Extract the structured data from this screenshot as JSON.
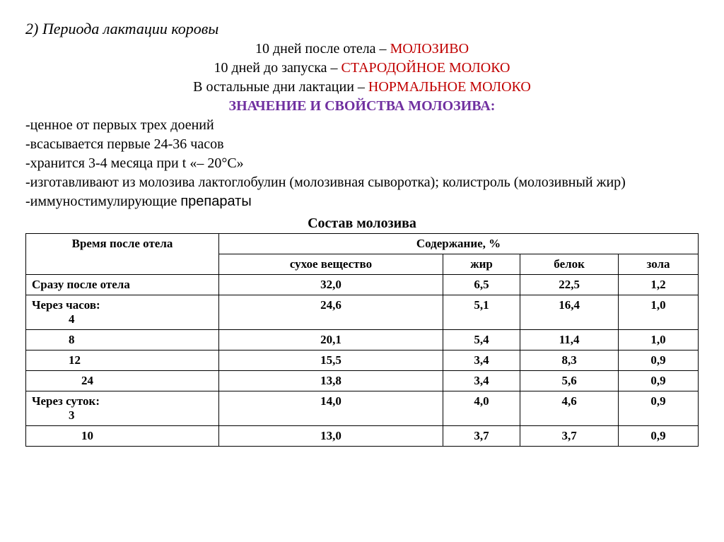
{
  "heading": "2) Периода лактации коровы",
  "lines": {
    "l1a": "10 дней после отела – ",
    "l1b": "МОЛОЗИВО",
    "l2a": "10 дней до запуска – ",
    "l2b": "СТАРОДОЙНОЕ МОЛОКО",
    "l3a": "В остальные дни лактации – ",
    "l3b": "НОРМАЛЬНОЕ МОЛОКО"
  },
  "purple_title": "ЗНАЧЕНИЕ И СВОЙСТВА МОЛОЗИВА:",
  "bullets": {
    "b1": "-ценное от первых трех доений",
    "b2": "-всасывается первые 24-36 часов",
    "b3": "-хранится 3-4 месяца при t «– 20°С»",
    "b4": "-изготавливают из молозива лактоглобулин (молозивная сыворотка); колистроль (молозивный жир)",
    "b5a": "-иммуностимулирующие ",
    "b5b": "препараты"
  },
  "table": {
    "title": "Состав молозива",
    "header": {
      "time": "Время после отела",
      "content": "Содержание, %",
      "sub": {
        "c1": "сухое вещество",
        "c2": "жир",
        "c3": "белок",
        "c4": "зола"
      }
    },
    "rows": [
      {
        "label": "Сразу после отела",
        "v": [
          "32,0",
          "6,5",
          "22,5",
          "1,2"
        ]
      },
      {
        "label": "Через часов:",
        "sub": "4",
        "v": [
          "24,6",
          "5,1",
          "16,4",
          "1,0"
        ]
      },
      {
        "label": "8",
        "indent": true,
        "v": [
          "20,1",
          "5,4",
          "11,4",
          "1,0"
        ]
      },
      {
        "label": "12",
        "indent": true,
        "v": [
          "15,5",
          "3,4",
          "8,3",
          "0,9"
        ]
      },
      {
        "label": "24",
        "indent2": true,
        "v": [
          "13,8",
          "3,4",
          "5,6",
          "0,9"
        ]
      },
      {
        "label": "Через суток:",
        "sub": "3",
        "v": [
          "14,0",
          "4,0",
          "4,6",
          "0,9"
        ]
      },
      {
        "label": "10",
        "indent2": true,
        "v": [
          "13,0",
          "3,7",
          "3,7",
          "0,9"
        ]
      }
    ]
  }
}
